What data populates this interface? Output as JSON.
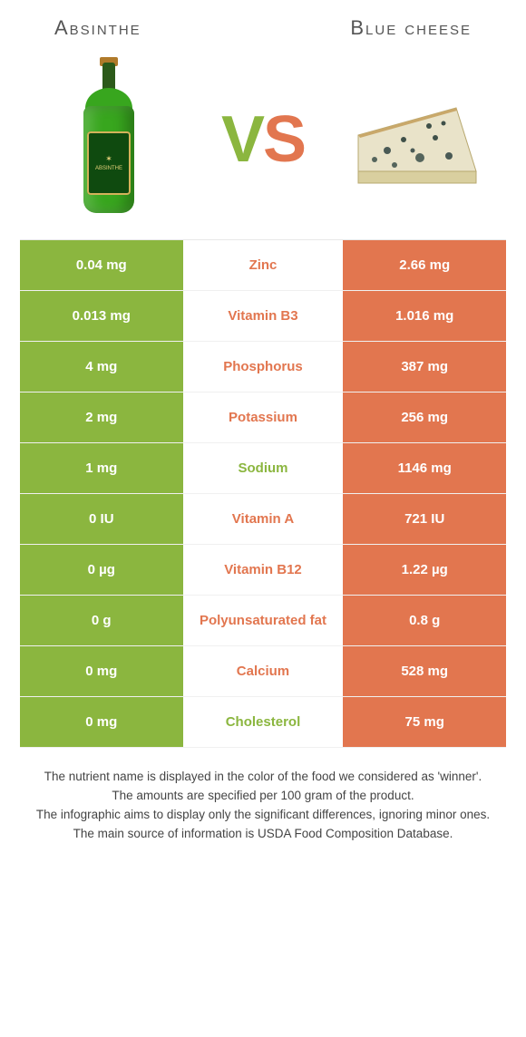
{
  "colors": {
    "green": "#8bb63f",
    "orange": "#e2764f"
  },
  "header": {
    "left_title": "Absinthe",
    "right_title": "Blue cheese",
    "vs_v": "V",
    "vs_s": "S",
    "bottle_label_lines": [
      "ABSINTHE"
    ]
  },
  "table": {
    "rows": [
      {
        "left": "0.04 mg",
        "name": "Zinc",
        "right": "2.66 mg",
        "winner": "right"
      },
      {
        "left": "0.013 mg",
        "name": "Vitamin B3",
        "right": "1.016 mg",
        "winner": "right"
      },
      {
        "left": "4 mg",
        "name": "Phosphorus",
        "right": "387 mg",
        "winner": "right"
      },
      {
        "left": "2 mg",
        "name": "Potassium",
        "right": "256 mg",
        "winner": "right"
      },
      {
        "left": "1 mg",
        "name": "Sodium",
        "right": "1146 mg",
        "winner": "left"
      },
      {
        "left": "0 IU",
        "name": "Vitamin A",
        "right": "721 IU",
        "winner": "right"
      },
      {
        "left": "0 µg",
        "name": "Vitamin B12",
        "right": "1.22 µg",
        "winner": "right"
      },
      {
        "left": "0 g",
        "name": "Polyunsaturated fat",
        "right": "0.8 g",
        "winner": "right"
      },
      {
        "left": "0 mg",
        "name": "Calcium",
        "right": "528 mg",
        "winner": "right"
      },
      {
        "left": "0 mg",
        "name": "Cholesterol",
        "right": "75 mg",
        "winner": "left"
      }
    ]
  },
  "notes": {
    "l1": "The nutrient name is displayed in the color of the food we considered as 'winner'.",
    "l2": "The amounts are specified per 100 gram of the product.",
    "l3": "The infographic aims to display only the significant differences, ignoring minor ones.",
    "l4": "The main source of information is USDA Food Composition Database."
  }
}
